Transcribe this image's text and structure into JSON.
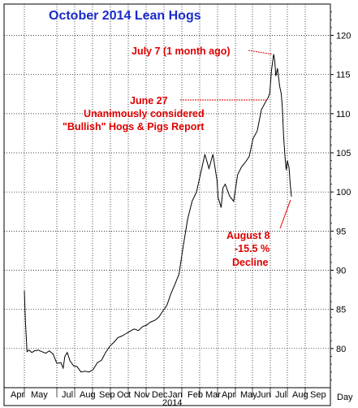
{
  "chart_data": {
    "type": "line",
    "title": "October 2014 Lean Hogs",
    "xlabel": "",
    "ylabel": "",
    "ylim": [
      75,
      124
    ],
    "yticks": [
      80,
      85,
      90,
      95,
      100,
      105,
      110,
      115,
      120
    ],
    "x_tick_labels": [
      "Apr",
      "May",
      "Jul",
      "Aug",
      "Sep",
      "Oct",
      "Nov",
      "Dec",
      "Jan",
      "Feb",
      "Mar",
      "Apr",
      "May",
      "Jun",
      "Jul",
      "Aug",
      "Sep"
    ],
    "year_label": "2014",
    "axis_corner_label": "Day",
    "grid": true,
    "series": [
      {
        "x": [
          "2013-05-01",
          "2013-05-03",
          "2013-05-06",
          "2013-05-10",
          "2013-05-15",
          "2013-05-20",
          "2013-05-27",
          "2013-06-03",
          "2013-06-10",
          "2013-06-17",
          "2013-06-24",
          "2013-07-01",
          "2013-07-08",
          "2013-07-12",
          "2013-07-15",
          "2013-07-19",
          "2013-07-24",
          "2013-07-30",
          "2013-08-05",
          "2013-08-12",
          "2013-08-19",
          "2013-08-26",
          "2013-09-02",
          "2013-09-09",
          "2013-09-16",
          "2013-09-23",
          "2013-09-30",
          "2013-10-07",
          "2013-10-14",
          "2013-10-21",
          "2013-10-28",
          "2013-11-04",
          "2013-11-11",
          "2013-11-18",
          "2013-11-25",
          "2013-12-02",
          "2013-12-09",
          "2013-12-16",
          "2013-12-23",
          "2013-12-30",
          "2014-01-06",
          "2014-01-13",
          "2014-01-20",
          "2014-01-27",
          "2014-02-03",
          "2014-02-10",
          "2014-02-17",
          "2014-02-24",
          "2014-03-03",
          "2014-03-10",
          "2014-03-17",
          "2014-03-24",
          "2014-03-31",
          "2014-04-02",
          "2014-04-07",
          "2014-04-10",
          "2014-04-14",
          "2014-04-21",
          "2014-04-28",
          "2014-05-05",
          "2014-05-12",
          "2014-05-19",
          "2014-05-26",
          "2014-06-02",
          "2014-06-09",
          "2014-06-16",
          "2014-06-23",
          "2014-06-27",
          "2014-06-30",
          "2014-07-03",
          "2014-07-07",
          "2014-07-09",
          "2014-07-11",
          "2014-07-14",
          "2014-07-16",
          "2014-07-18",
          "2014-07-21",
          "2014-07-23",
          "2014-07-25",
          "2014-07-28",
          "2014-07-30",
          "2014-08-01",
          "2014-08-04",
          "2014-08-06",
          "2014-08-08"
        ],
        "y": [
          87.4,
          83.5,
          79.6,
          79.8,
          79.5,
          79.7,
          79.8,
          79.6,
          79.4,
          79.7,
          79.3,
          78.1,
          78.2,
          77.5,
          79.0,
          79.5,
          78.4,
          77.8,
          77.7,
          77.0,
          77.1,
          77.0,
          77.3,
          78.2,
          78.5,
          79.5,
          80.3,
          80.8,
          81.4,
          81.6,
          81.9,
          82.2,
          82.5,
          82.3,
          82.8,
          83.0,
          83.4,
          83.6,
          84.0,
          84.8,
          85.5,
          87.0,
          88.2,
          89.5,
          93.0,
          96.5,
          98.8,
          100.0,
          102.5,
          104.8,
          103.0,
          104.8,
          101.5,
          99.3,
          98.0,
          100.5,
          101.0,
          99.5,
          98.8,
          102.2,
          103.2,
          103.8,
          104.5,
          106.8,
          107.8,
          110.5,
          111.5,
          112.0,
          112.6,
          115.5,
          117.6,
          116.8,
          114.8,
          115.8,
          114.6,
          113.5,
          112.5,
          110.6,
          107.2,
          104.2,
          102.8,
          104.0,
          103.1,
          101.0,
          99.4
        ]
      }
    ],
    "annotations": [
      {
        "lines": [
          "July 7 (1 month ago)"
        ],
        "anchor_date": "2014-07-07",
        "anchor_value": 117.6
      },
      {
        "lines": [
          "June 27",
          "Unanimously considered",
          "\"Bullish\" Hogs & Pigs Report"
        ],
        "anchor_date": "2014-06-27",
        "anchor_value": 112.0
      },
      {
        "lines": [
          "August 8",
          "-15.5 %",
          "Decline"
        ],
        "anchor_date": "2014-08-08",
        "anchor_value": 99.4
      }
    ],
    "colors": {
      "price_line": "#000000",
      "title": "#1a2cc8",
      "annotation": "#e00000",
      "grid": "#000000"
    }
  }
}
